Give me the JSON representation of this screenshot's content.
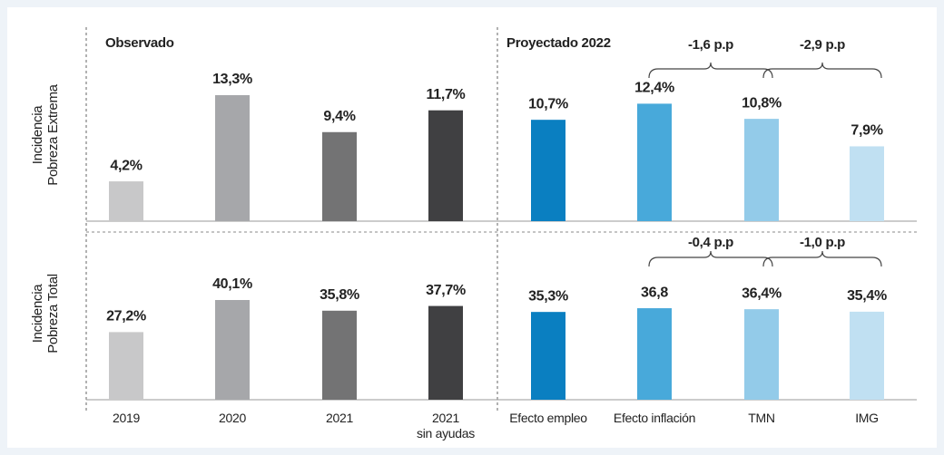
{
  "chart_data": {
    "type": "bar",
    "sections": [
      "Observado",
      "Proyectado 2022"
    ],
    "categories": [
      "2019",
      "2020",
      "2021",
      "2021\nsin ayudas",
      "Efecto empleo",
      "Efecto inflación",
      "TMN",
      "IMG"
    ],
    "colors": [
      "#c8c8c9",
      "#a6a7aa",
      "#737374",
      "#404042",
      "#0a7fc1",
      "#48a9da",
      "#93cbe9",
      "#c0e0f2"
    ],
    "series": [
      {
        "name": "Incidencia\nPobreza Extrema",
        "values": [
          4.2,
          13.3,
          9.4,
          11.7,
          10.7,
          12.4,
          10.8,
          7.9
        ],
        "value_labels": [
          "4,2%",
          "13,3%",
          "9,4%",
          "11,7%",
          "10,7%",
          "12,4%",
          "10,8%",
          "7,9%"
        ]
      },
      {
        "name": "Incidencia\nPobreza Total",
        "values": [
          27.2,
          40.1,
          35.8,
          37.7,
          35.3,
          36.8,
          36.4,
          35.4
        ],
        "value_labels": [
          "27,2%",
          "40,1%",
          "35,8%",
          "37,7%",
          "35,3%",
          "36,8",
          "36,4%",
          "35,4%"
        ]
      }
    ],
    "annotations": [
      [
        "-1,6 p.p",
        "-2,9 p.p"
      ],
      [
        "-0,4 p.p",
        "-1,0 p.p"
      ]
    ]
  }
}
